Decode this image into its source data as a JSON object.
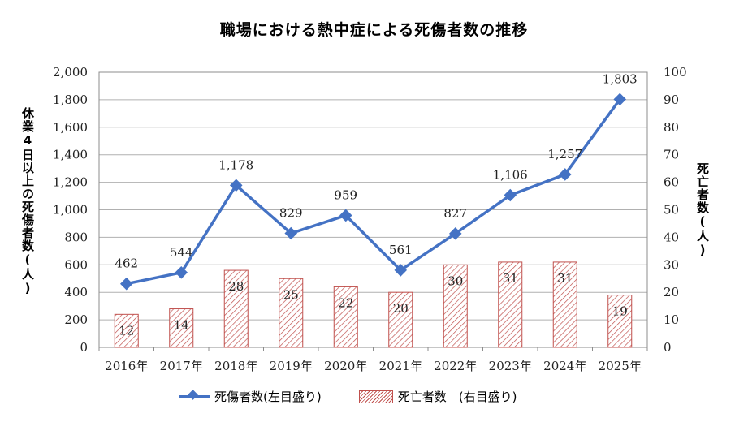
{
  "chart_data": {
    "type": "bar+line",
    "title": "職場における熱中症による死傷者数の推移",
    "categories": [
      "2016年",
      "2017年",
      "2018年",
      "2019年",
      "2020年",
      "2021年",
      "2022年",
      "2023年",
      "2024年",
      "2025年"
    ],
    "series": [
      {
        "name": "死傷者数(左目盛り)",
        "type": "line",
        "axis": "left",
        "color": "#4472c4",
        "values": [
          462,
          544,
          1178,
          829,
          959,
          561,
          827,
          1106,
          1257,
          1803
        ],
        "labels": [
          "462",
          "544",
          "1,178",
          "829",
          "959",
          "561",
          "827",
          "1,106",
          "1,257",
          "1,803"
        ]
      },
      {
        "name": "死亡者数　(右目盛り)",
        "type": "bar",
        "axis": "right",
        "color": "#c0504d",
        "values": [
          12,
          14,
          28,
          25,
          22,
          20,
          30,
          31,
          31,
          19
        ],
        "labels": [
          "12",
          "14",
          "28",
          "25",
          "22",
          "20",
          "30",
          "31",
          "31",
          "19"
        ]
      }
    ],
    "ylabel_left": "休業4日以上の死傷者数(人)",
    "ylabel_right": "死亡者数(人)",
    "ylim_left": [
      0,
      2000
    ],
    "ylim_right": [
      0,
      100
    ],
    "yticks_left": [
      "0",
      "200",
      "400",
      "600",
      "800",
      "1,000",
      "1,200",
      "1,400",
      "1,600",
      "1,800",
      "2,000"
    ],
    "yticks_right": [
      "0",
      "10",
      "20",
      "30",
      "40",
      "50",
      "60",
      "70",
      "80",
      "90",
      "100"
    ],
    "grid": true,
    "legend_position": "bottom"
  }
}
